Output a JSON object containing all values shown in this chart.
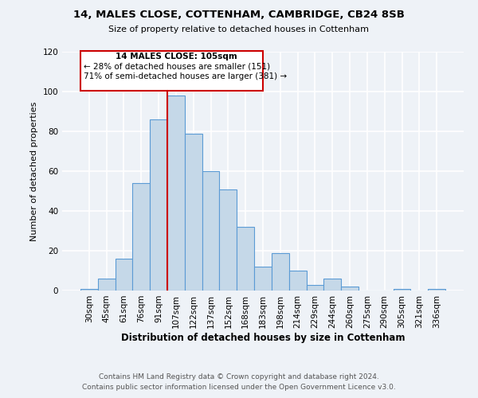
{
  "title": "14, MALES CLOSE, COTTENHAM, CAMBRIDGE, CB24 8SB",
  "subtitle": "Size of property relative to detached houses in Cottenham",
  "xlabel": "Distribution of detached houses by size in Cottenham",
  "ylabel": "Number of detached properties",
  "bar_labels": [
    "30sqm",
    "45sqm",
    "61sqm",
    "76sqm",
    "91sqm",
    "107sqm",
    "122sqm",
    "137sqm",
    "152sqm",
    "168sqm",
    "183sqm",
    "198sqm",
    "214sqm",
    "229sqm",
    "244sqm",
    "260sqm",
    "275sqm",
    "290sqm",
    "305sqm",
    "321sqm",
    "336sqm"
  ],
  "bar_values": [
    1,
    6,
    16,
    54,
    86,
    98,
    79,
    60,
    51,
    32,
    12,
    19,
    10,
    3,
    6,
    2,
    0,
    0,
    1,
    0,
    1
  ],
  "bar_color": "#c5d8e8",
  "bar_edge_color": "#5b9bd5",
  "annotation_title": "14 MALES CLOSE: 105sqm",
  "annotation_line1": "← 28% of detached houses are smaller (151)",
  "annotation_line2": "71% of semi-detached houses are larger (381) →",
  "vline_color": "#cc0000",
  "box_edge_color": "#cc0000",
  "ylim": [
    0,
    120
  ],
  "yticks": [
    0,
    20,
    40,
    60,
    80,
    100,
    120
  ],
  "footer1": "Contains HM Land Registry data © Crown copyright and database right 2024.",
  "footer2": "Contains public sector information licensed under the Open Government Licence v3.0.",
  "bg_color": "#eef2f7",
  "plot_bg_color": "#eef2f7",
  "grid_color": "#ffffff"
}
